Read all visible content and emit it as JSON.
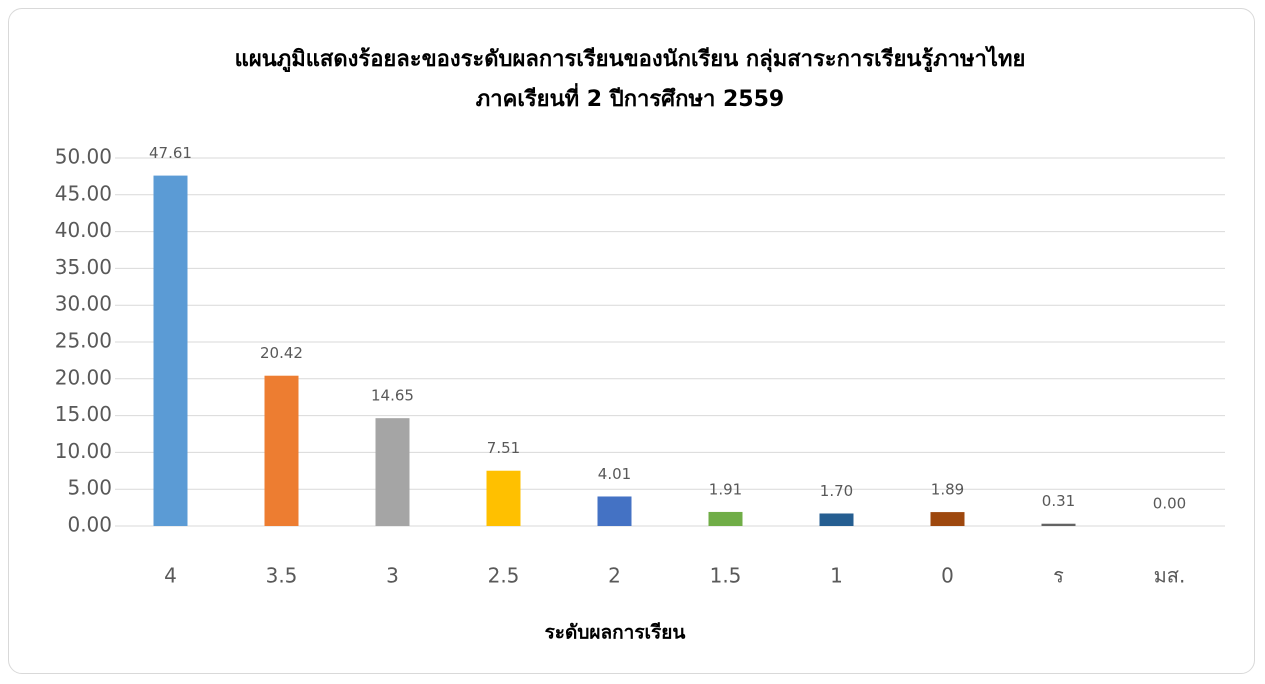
{
  "chart_data": {
    "type": "bar",
    "title": [
      "แผนภูมิแสดงร้อยละของระดับผลการเรียนของนักเรียน กลุ่มสาระการเรียนรู้ภาษาไทย",
      "ภาคเรียนที่ 2 ปีการศึกษา 2559"
    ],
    "x_label": "ระดับผลการเรียน",
    "categories": [
      "4",
      "3.5",
      "3",
      "2.5",
      "2",
      "1.5",
      "1",
      "0",
      "ร",
      "มส."
    ],
    "values": [
      47.61,
      20.42,
      14.65,
      7.51,
      4.01,
      1.91,
      1.7,
      1.89,
      0.31,
      0.0
    ],
    "value_labels": [
      "47.61",
      "20.42",
      "14.65",
      "7.51",
      "4.01",
      "1.91",
      "1.70",
      "1.89",
      "0.31",
      "0.00"
    ],
    "colors": [
      "#5b9bd5",
      "#ed7d31",
      "#a5a5a5",
      "#ffc000",
      "#4472c4",
      "#70ad47",
      "#255e91",
      "#9e480e",
      "#636363",
      "#997300"
    ],
    "ylim": [
      0,
      50
    ],
    "yticks": [
      {
        "value": 0,
        "label": "0.00"
      },
      {
        "value": 5,
        "label": "5.00"
      },
      {
        "value": 10,
        "label": "10.00"
      },
      {
        "value": 15,
        "label": "15.00"
      },
      {
        "value": 20,
        "label": "20.00"
      },
      {
        "value": 25,
        "label": "25.00"
      },
      {
        "value": 30,
        "label": "30.00"
      },
      {
        "value": 35,
        "label": "35.00"
      },
      {
        "value": 40,
        "label": "40.00"
      },
      {
        "value": 45,
        "label": "45.00"
      },
      {
        "value": 50,
        "label": "50.00"
      }
    ],
    "grid": true
  }
}
